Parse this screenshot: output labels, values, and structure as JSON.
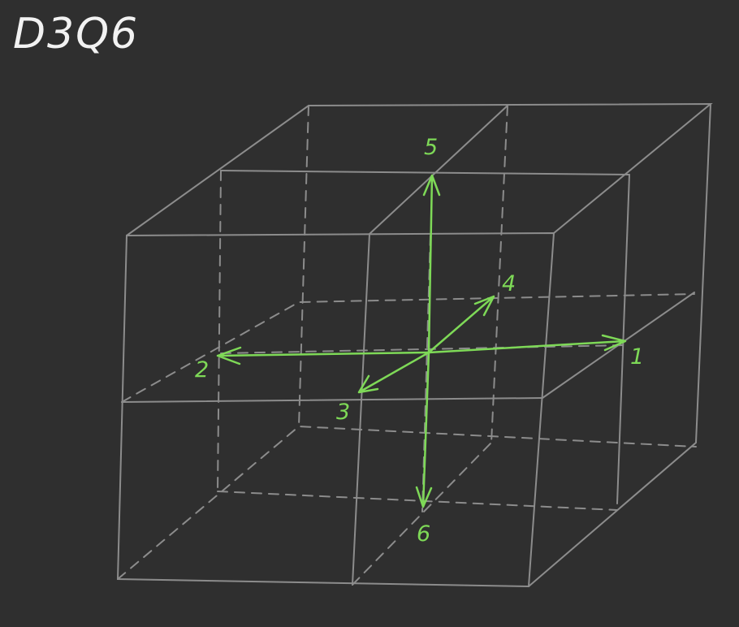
{
  "title": "D3Q6",
  "vectors": [
    {
      "id": "1",
      "label": "1"
    },
    {
      "id": "2",
      "label": "2"
    },
    {
      "id": "3",
      "label": "3"
    },
    {
      "id": "4",
      "label": "4"
    },
    {
      "id": "5",
      "label": "5"
    },
    {
      "id": "6",
      "label": "6"
    }
  ],
  "colors": {
    "background": "#2f2f2f",
    "grid": "#8c8c8c",
    "vectors": "#7ed957",
    "title": "#f2f2f2"
  }
}
